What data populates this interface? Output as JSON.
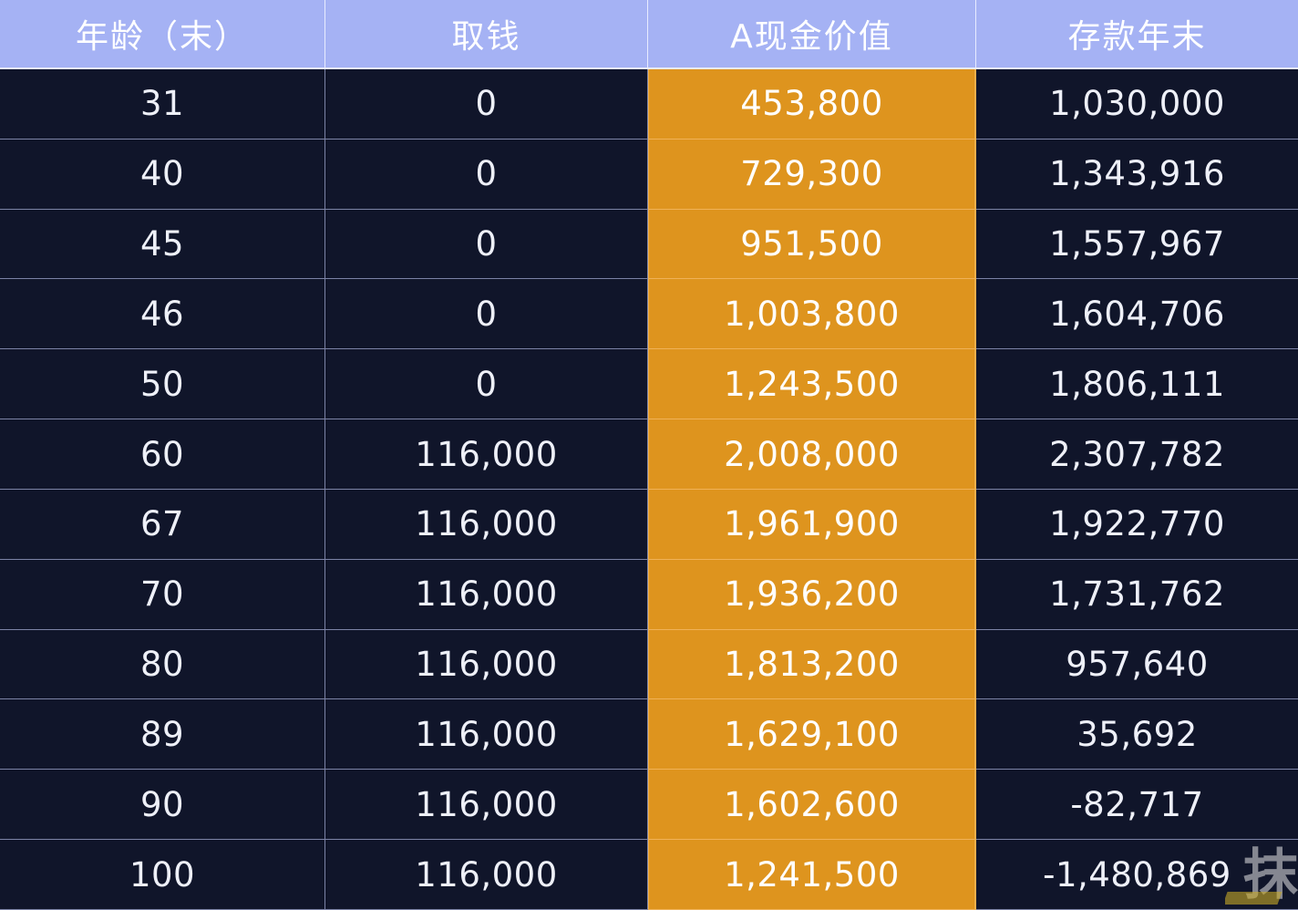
{
  "table": {
    "headers": [
      "年龄（末）",
      "取钱",
      "A现金价值",
      "存款年末"
    ],
    "rows": [
      [
        "31",
        "0",
        "453,800",
        "1,030,000"
      ],
      [
        "40",
        "0",
        "729,300",
        "1,343,916"
      ],
      [
        "45",
        "0",
        "951,500",
        "1,557,967"
      ],
      [
        "46",
        "0",
        "1,003,800",
        "1,604,706"
      ],
      [
        "50",
        "0",
        "1,243,500",
        "1,806,111"
      ],
      [
        "60",
        "116,000",
        "2,008,000",
        "2,307,782"
      ],
      [
        "67",
        "116,000",
        "1,961,900",
        "1,922,770"
      ],
      [
        "70",
        "116,000",
        "1,936,200",
        "1,731,762"
      ],
      [
        "80",
        "116,000",
        "1,813,200",
        "957,640"
      ],
      [
        "89",
        "116,000",
        "1,629,100",
        "35,692"
      ],
      [
        "90",
        "116,000",
        "1,602,600",
        "-82,717"
      ],
      [
        "100",
        "116,000",
        "1,241,500",
        "-1,480,869"
      ]
    ]
  },
  "colors": {
    "header_bg": "#a5b2f4",
    "body_bg": "#10152a",
    "highlight_column_bg": "#de941e"
  },
  "watermark": "抹"
}
